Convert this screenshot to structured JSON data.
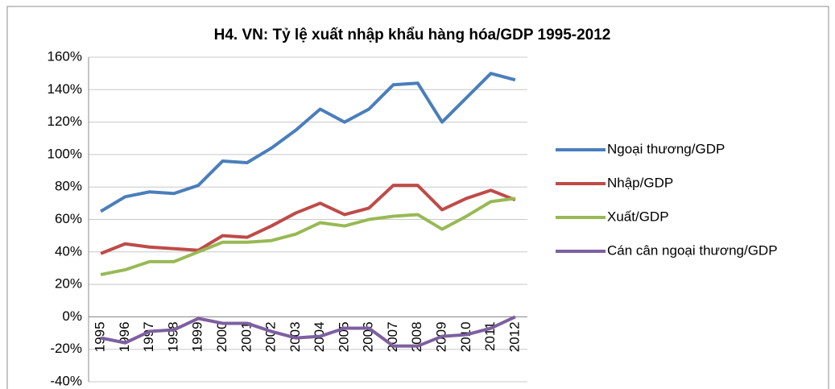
{
  "chart_data": {
    "type": "line",
    "title": "H4. VN: Tỷ lệ xuất nhập khẩu hàng hóa/GDP 1995-2012",
    "categories": [
      "1995",
      "1996",
      "1997",
      "1998",
      "1999",
      "2000",
      "2001",
      "2002",
      "2003",
      "2004",
      "2005",
      "2006",
      "2007",
      "2008",
      "2009",
      "2010",
      "2011",
      "2012"
    ],
    "series": [
      {
        "name": "Ngoại thương/GDP",
        "color": "#4a7ebb",
        "values": [
          65,
          74,
          77,
          76,
          81,
          96,
          95,
          104,
          115,
          128,
          120,
          128,
          143,
          144,
          120,
          135,
          150,
          146
        ]
      },
      {
        "name": "Nhập/GDP",
        "color": "#be4b48",
        "values": [
          39,
          45,
          43,
          42,
          41,
          50,
          49,
          56,
          64,
          70,
          63,
          67,
          81,
          81,
          66,
          73,
          78,
          72
        ]
      },
      {
        "name": "Xuất/GDP",
        "color": "#98b954",
        "values": [
          26,
          29,
          34,
          34,
          40,
          46,
          46,
          47,
          51,
          58,
          56,
          60,
          62,
          63,
          54,
          62,
          71,
          73
        ]
      },
      {
        "name": "Cán cân ngoại thương/GDP",
        "color": "#7d60a0",
        "values": [
          -13,
          -16,
          -9,
          -8,
          -1,
          -4,
          -4,
          -9,
          -13,
          -12,
          -7,
          -7,
          -18,
          -18,
          -12,
          -11,
          -7,
          0
        ]
      }
    ],
    "ylim": [
      -40,
      160
    ],
    "yticks": [
      {
        "value": -40,
        "label": "-40%"
      },
      {
        "value": -20,
        "label": "-20%"
      },
      {
        "value": 0,
        "label": "0%"
      },
      {
        "value": 20,
        "label": "20%"
      },
      {
        "value": 40,
        "label": "40%"
      },
      {
        "value": 60,
        "label": "60%"
      },
      {
        "value": 80,
        "label": "80%"
      },
      {
        "value": 100,
        "label": "100%"
      },
      {
        "value": 120,
        "label": "120%"
      },
      {
        "value": 140,
        "label": "140%"
      },
      {
        "value": 160,
        "label": "160%"
      }
    ],
    "grid": true,
    "legend_position": "right"
  }
}
